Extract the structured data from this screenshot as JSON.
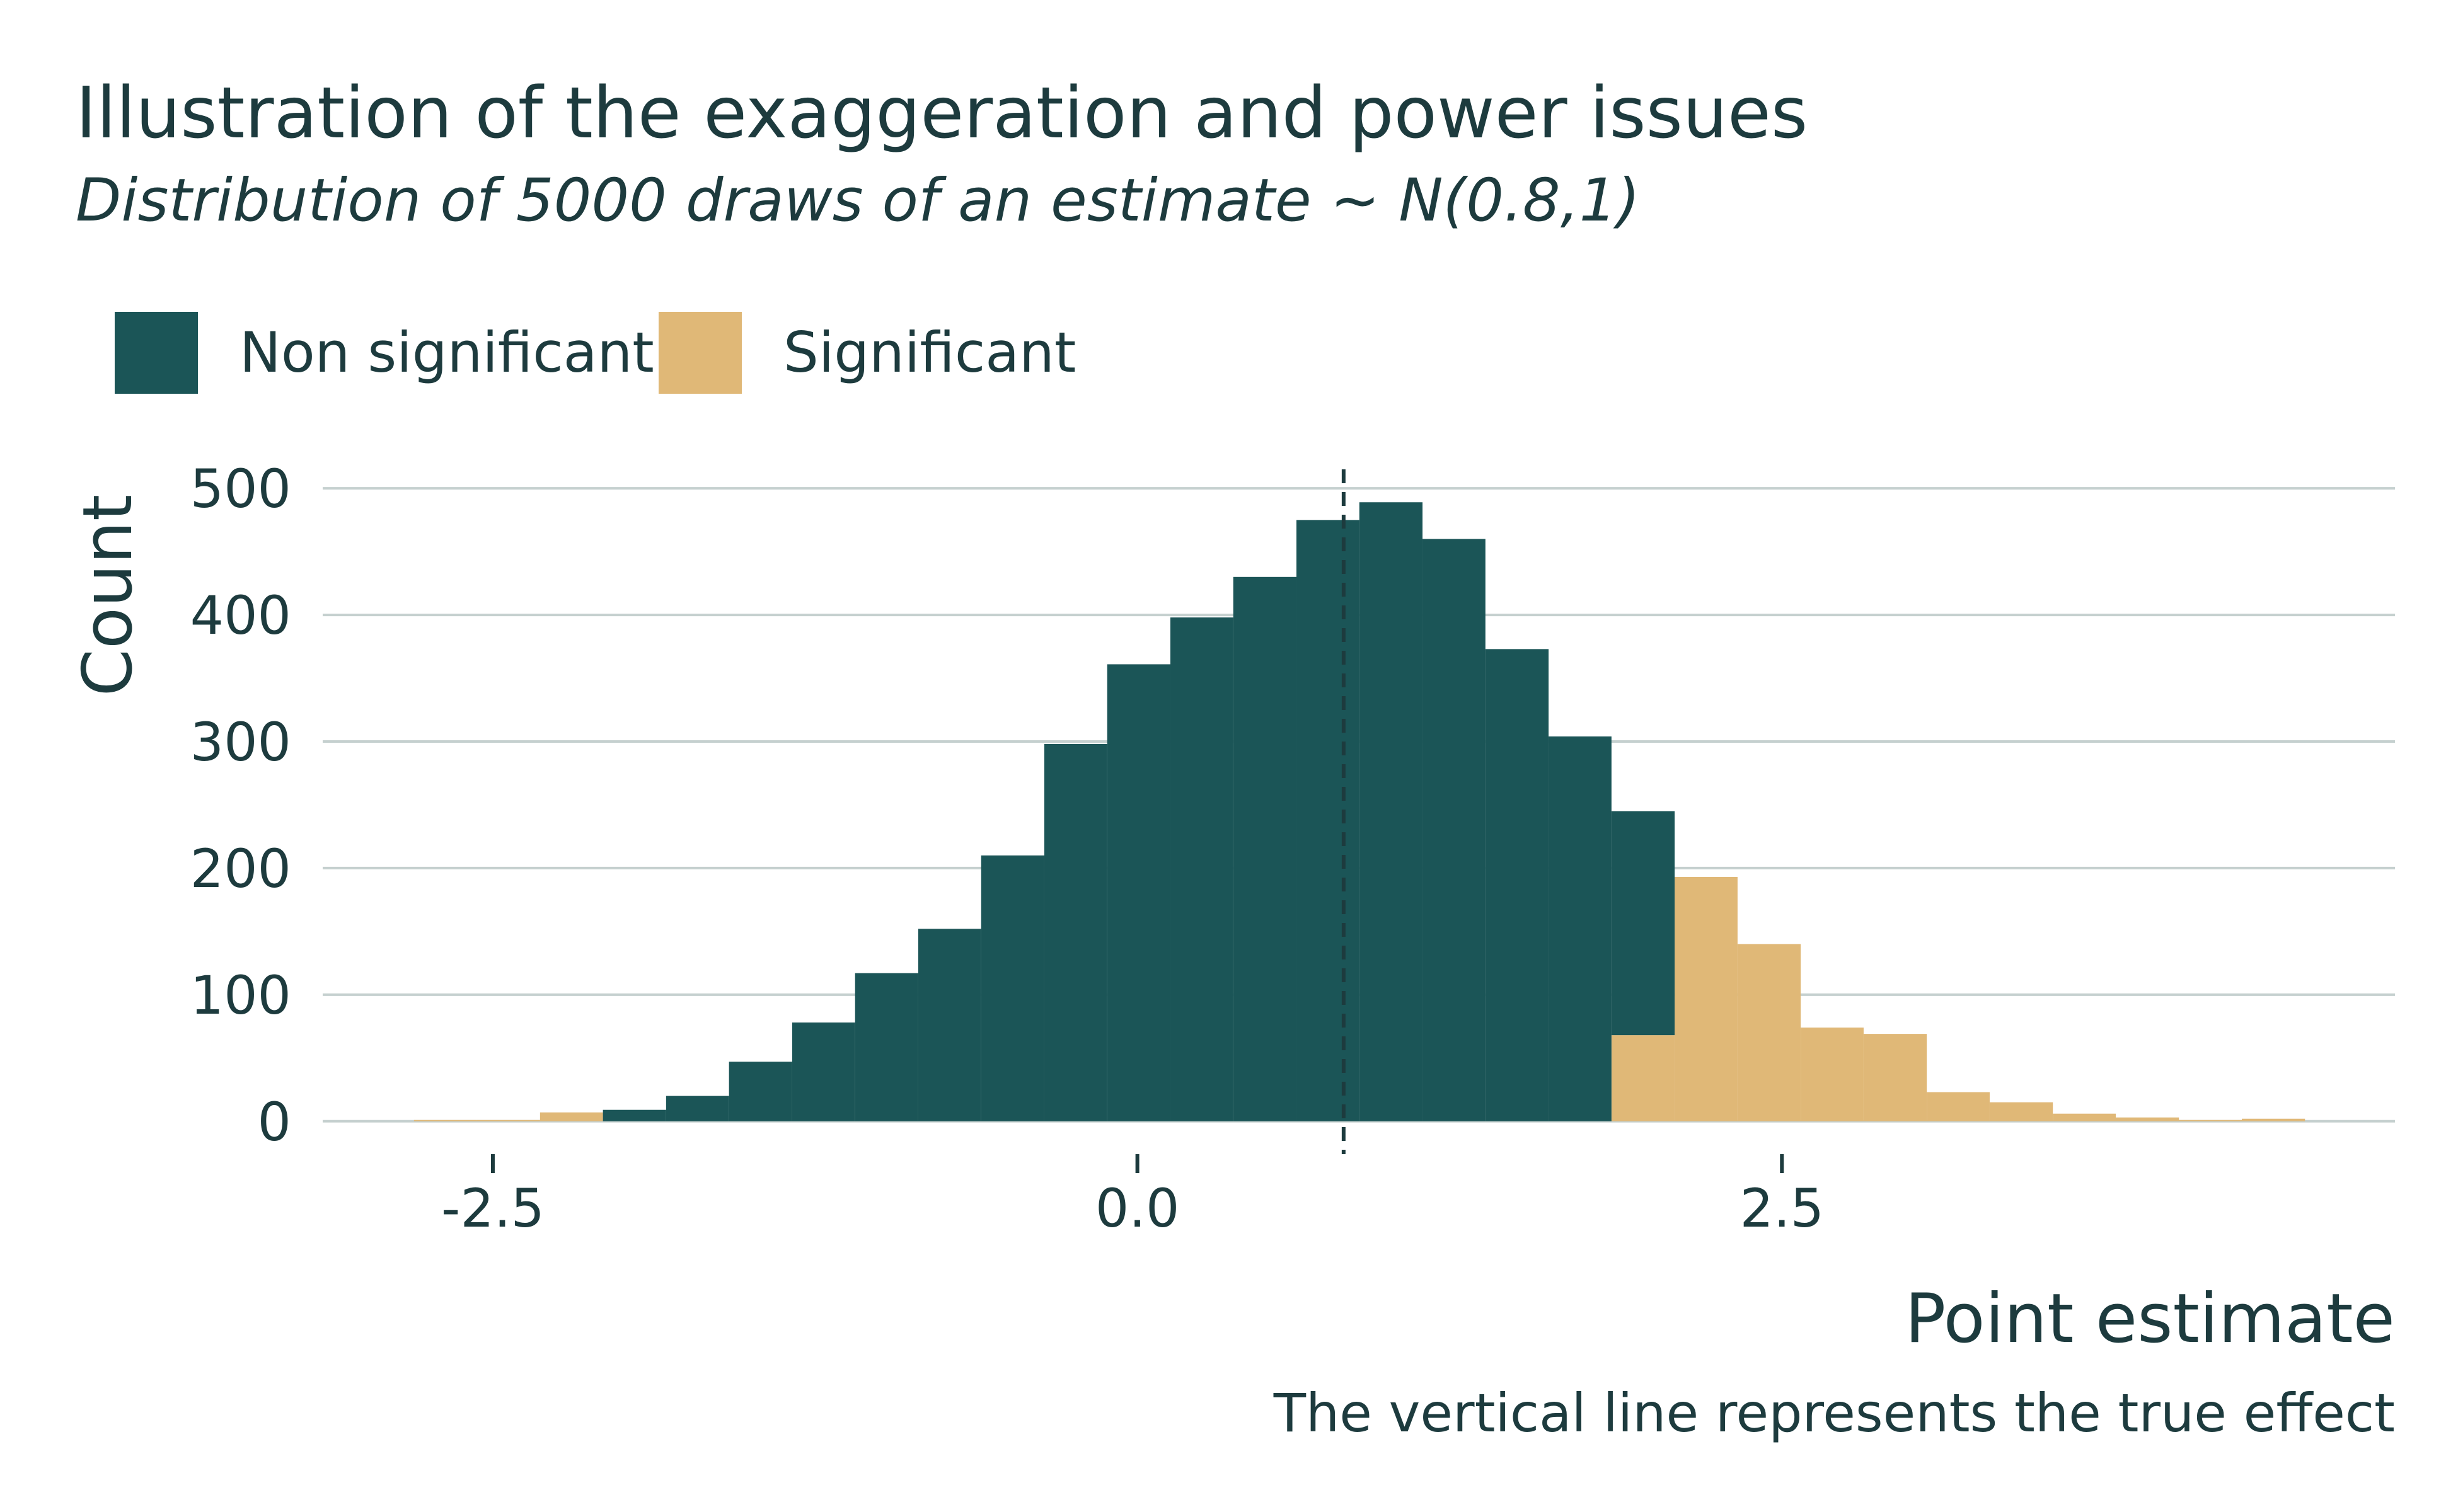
{
  "chart_data": {
    "type": "histogram",
    "title": "Illustration of the exaggeration and power issues",
    "subtitle": "Distribution of 5000 draws of an estimate ~ N(0.8,1)",
    "x_label": "Point estimate",
    "y_label": "Count",
    "caption": "The vertical line represents the true effect",
    "bins": [
      -2.806,
      -2.562,
      -2.317,
      -2.073,
      -1.828,
      -1.584,
      -1.339,
      -1.095,
      -0.85,
      -0.606,
      -0.361,
      -0.117,
      0.128,
      0.372,
      0.617,
      0.861,
      1.106,
      1.35,
      1.595,
      1.839,
      2.084,
      2.328,
      2.573,
      2.817,
      3.062,
      3.306,
      3.551,
      3.795,
      4.04,
      4.284,
      4.529
    ],
    "series": [
      {
        "name": "Non significant",
        "color": "#1b5557",
        "values": [
          0,
          0,
          0,
          9,
          20,
          47,
          78,
          117,
          152,
          210,
          298,
          361,
          398,
          430,
          475,
          489,
          460,
          373,
          304,
          177,
          0,
          0,
          0,
          0,
          0,
          0,
          0,
          0,
          0,
          0
        ]
      },
      {
        "name": "Significant",
        "color": "#e0b877",
        "values": [
          1,
          1,
          7,
          0,
          0,
          0,
          0,
          0,
          0,
          0,
          0,
          0,
          0,
          0,
          0,
          0,
          0,
          0,
          0,
          68,
          193,
          140,
          74,
          69,
          23,
          15,
          6,
          3,
          1,
          2
        ]
      }
    ],
    "stack_order": [
      "Significant",
      "Non significant"
    ],
    "vline": 0.8,
    "xlim": [
      -3.16,
      4.878
    ],
    "ylim": [
      -26,
      515
    ],
    "xticks": [
      -2.5,
      {
        "value": 0,
        "label": "0.0"
      },
      2.5
    ],
    "yticks": [
      0,
      100,
      200,
      300,
      400,
      500
    ],
    "grid": true
  }
}
